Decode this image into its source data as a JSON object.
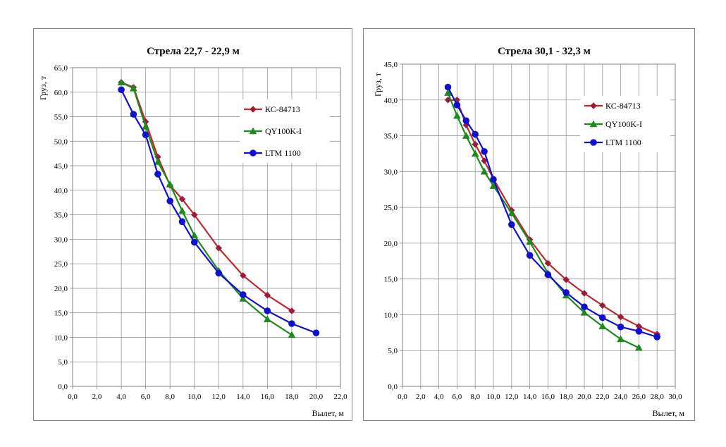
{
  "chart_data": [
    {
      "type": "line",
      "title": "Стрела 22,7 - 22,9 м",
      "xlabel": "Вылет, м",
      "ylabel": "Груз, т",
      "xlim": [
        0,
        22
      ],
      "ylim": [
        0,
        65
      ],
      "xticks": [
        "0,0",
        "2,0",
        "4,0",
        "6,0",
        "8,0",
        "10,0",
        "12,0",
        "14,0",
        "16,0",
        "18,0",
        "20,0",
        "22,0"
      ],
      "yticks": [
        "0,0",
        "5,0",
        "10,0",
        "15,0",
        "20,0",
        "25,0",
        "30,0",
        "35,0",
        "40,0",
        "45,0",
        "50,0",
        "55,0",
        "60,0",
        "65,0"
      ],
      "grid": true,
      "legend_position": "right",
      "series": [
        {
          "name": "КС-84713",
          "color": "#c0282a",
          "marker": "diamond",
          "marker_color": "#9b1b3a",
          "x": [
            4,
            5,
            6,
            7,
            8,
            9,
            10,
            12,
            14,
            16,
            18
          ],
          "y": [
            62.0,
            61.0,
            54.0,
            46.8,
            41.0,
            38.2,
            35.0,
            28.2,
            22.6,
            18.6,
            15.4
          ]
        },
        {
          "name": "QY100K-I",
          "color": "#1e8a1e",
          "marker": "triangle",
          "marker_color": "#1e8a1e",
          "x": [
            4,
            5,
            6,
            7,
            8,
            9,
            10,
            12,
            14,
            16,
            18
          ],
          "y": [
            62.0,
            60.8,
            53.0,
            45.8,
            41.2,
            35.8,
            30.8,
            23.6,
            17.9,
            13.7,
            10.5
          ]
        },
        {
          "name": "LTM 1100",
          "color": "#1010d0",
          "marker": "circle",
          "marker_color": "#1010d0",
          "x": [
            4,
            5,
            6,
            7,
            8,
            9,
            10,
            12,
            14,
            16,
            18,
            20
          ],
          "y": [
            60.5,
            55.5,
            51.3,
            43.3,
            37.8,
            33.6,
            29.4,
            23.1,
            18.7,
            15.4,
            12.8,
            10.9
          ]
        }
      ]
    },
    {
      "type": "line",
      "title": "Стрела 30,1 - 32,3 м",
      "xlabel": "Вылет, м",
      "ylabel": "Груз, т",
      "xlim": [
        0,
        30
      ],
      "ylim": [
        0,
        45
      ],
      "xticks": [
        "0,0",
        "2,0",
        "4,0",
        "6,0",
        "8,0",
        "10,0",
        "12,0",
        "14,0",
        "16,0",
        "18,0",
        "20,0",
        "22,0",
        "24,0",
        "26,0",
        "28,0",
        "30,0"
      ],
      "yticks": [
        "0,0",
        "5,0",
        "10,0",
        "15,0",
        "20,0",
        "25,0",
        "30,0",
        "35,0",
        "40,0",
        "45,0"
      ],
      "grid": true,
      "legend_position": "right",
      "series": [
        {
          "name": "КС-84713",
          "color": "#c0282a",
          "marker": "diamond",
          "marker_color": "#9b1b3a",
          "x": [
            5,
            6,
            7,
            8,
            9,
            10,
            12,
            14,
            16,
            18,
            20,
            22,
            24,
            26,
            28
          ],
          "y": [
            40.0,
            40.0,
            36.5,
            33.8,
            31.5,
            29.0,
            24.6,
            20.5,
            17.2,
            14.9,
            13.0,
            11.3,
            9.7,
            8.4,
            7.3
          ]
        },
        {
          "name": "QY100K-I",
          "color": "#1e8a1e",
          "marker": "triangle",
          "marker_color": "#1e8a1e",
          "x": [
            5,
            6,
            7,
            8,
            9,
            10,
            12,
            14,
            16,
            18,
            20,
            22,
            24,
            26
          ],
          "y": [
            41.0,
            37.8,
            35.0,
            32.5,
            30.0,
            28.0,
            24.2,
            20.2,
            15.8,
            12.7,
            10.3,
            8.4,
            6.6,
            5.4
          ]
        },
        {
          "name": "LTM 1100",
          "color": "#1010d0",
          "marker": "circle",
          "marker_color": "#1010d0",
          "x": [
            5,
            6,
            7,
            8,
            9,
            10,
            12,
            14,
            16,
            18,
            20,
            22,
            24,
            26,
            28
          ],
          "y": [
            41.8,
            39.3,
            37.1,
            35.2,
            32.8,
            28.9,
            22.6,
            18.3,
            15.6,
            13.1,
            11.1,
            9.6,
            8.3,
            7.7,
            6.9
          ]
        }
      ]
    }
  ]
}
